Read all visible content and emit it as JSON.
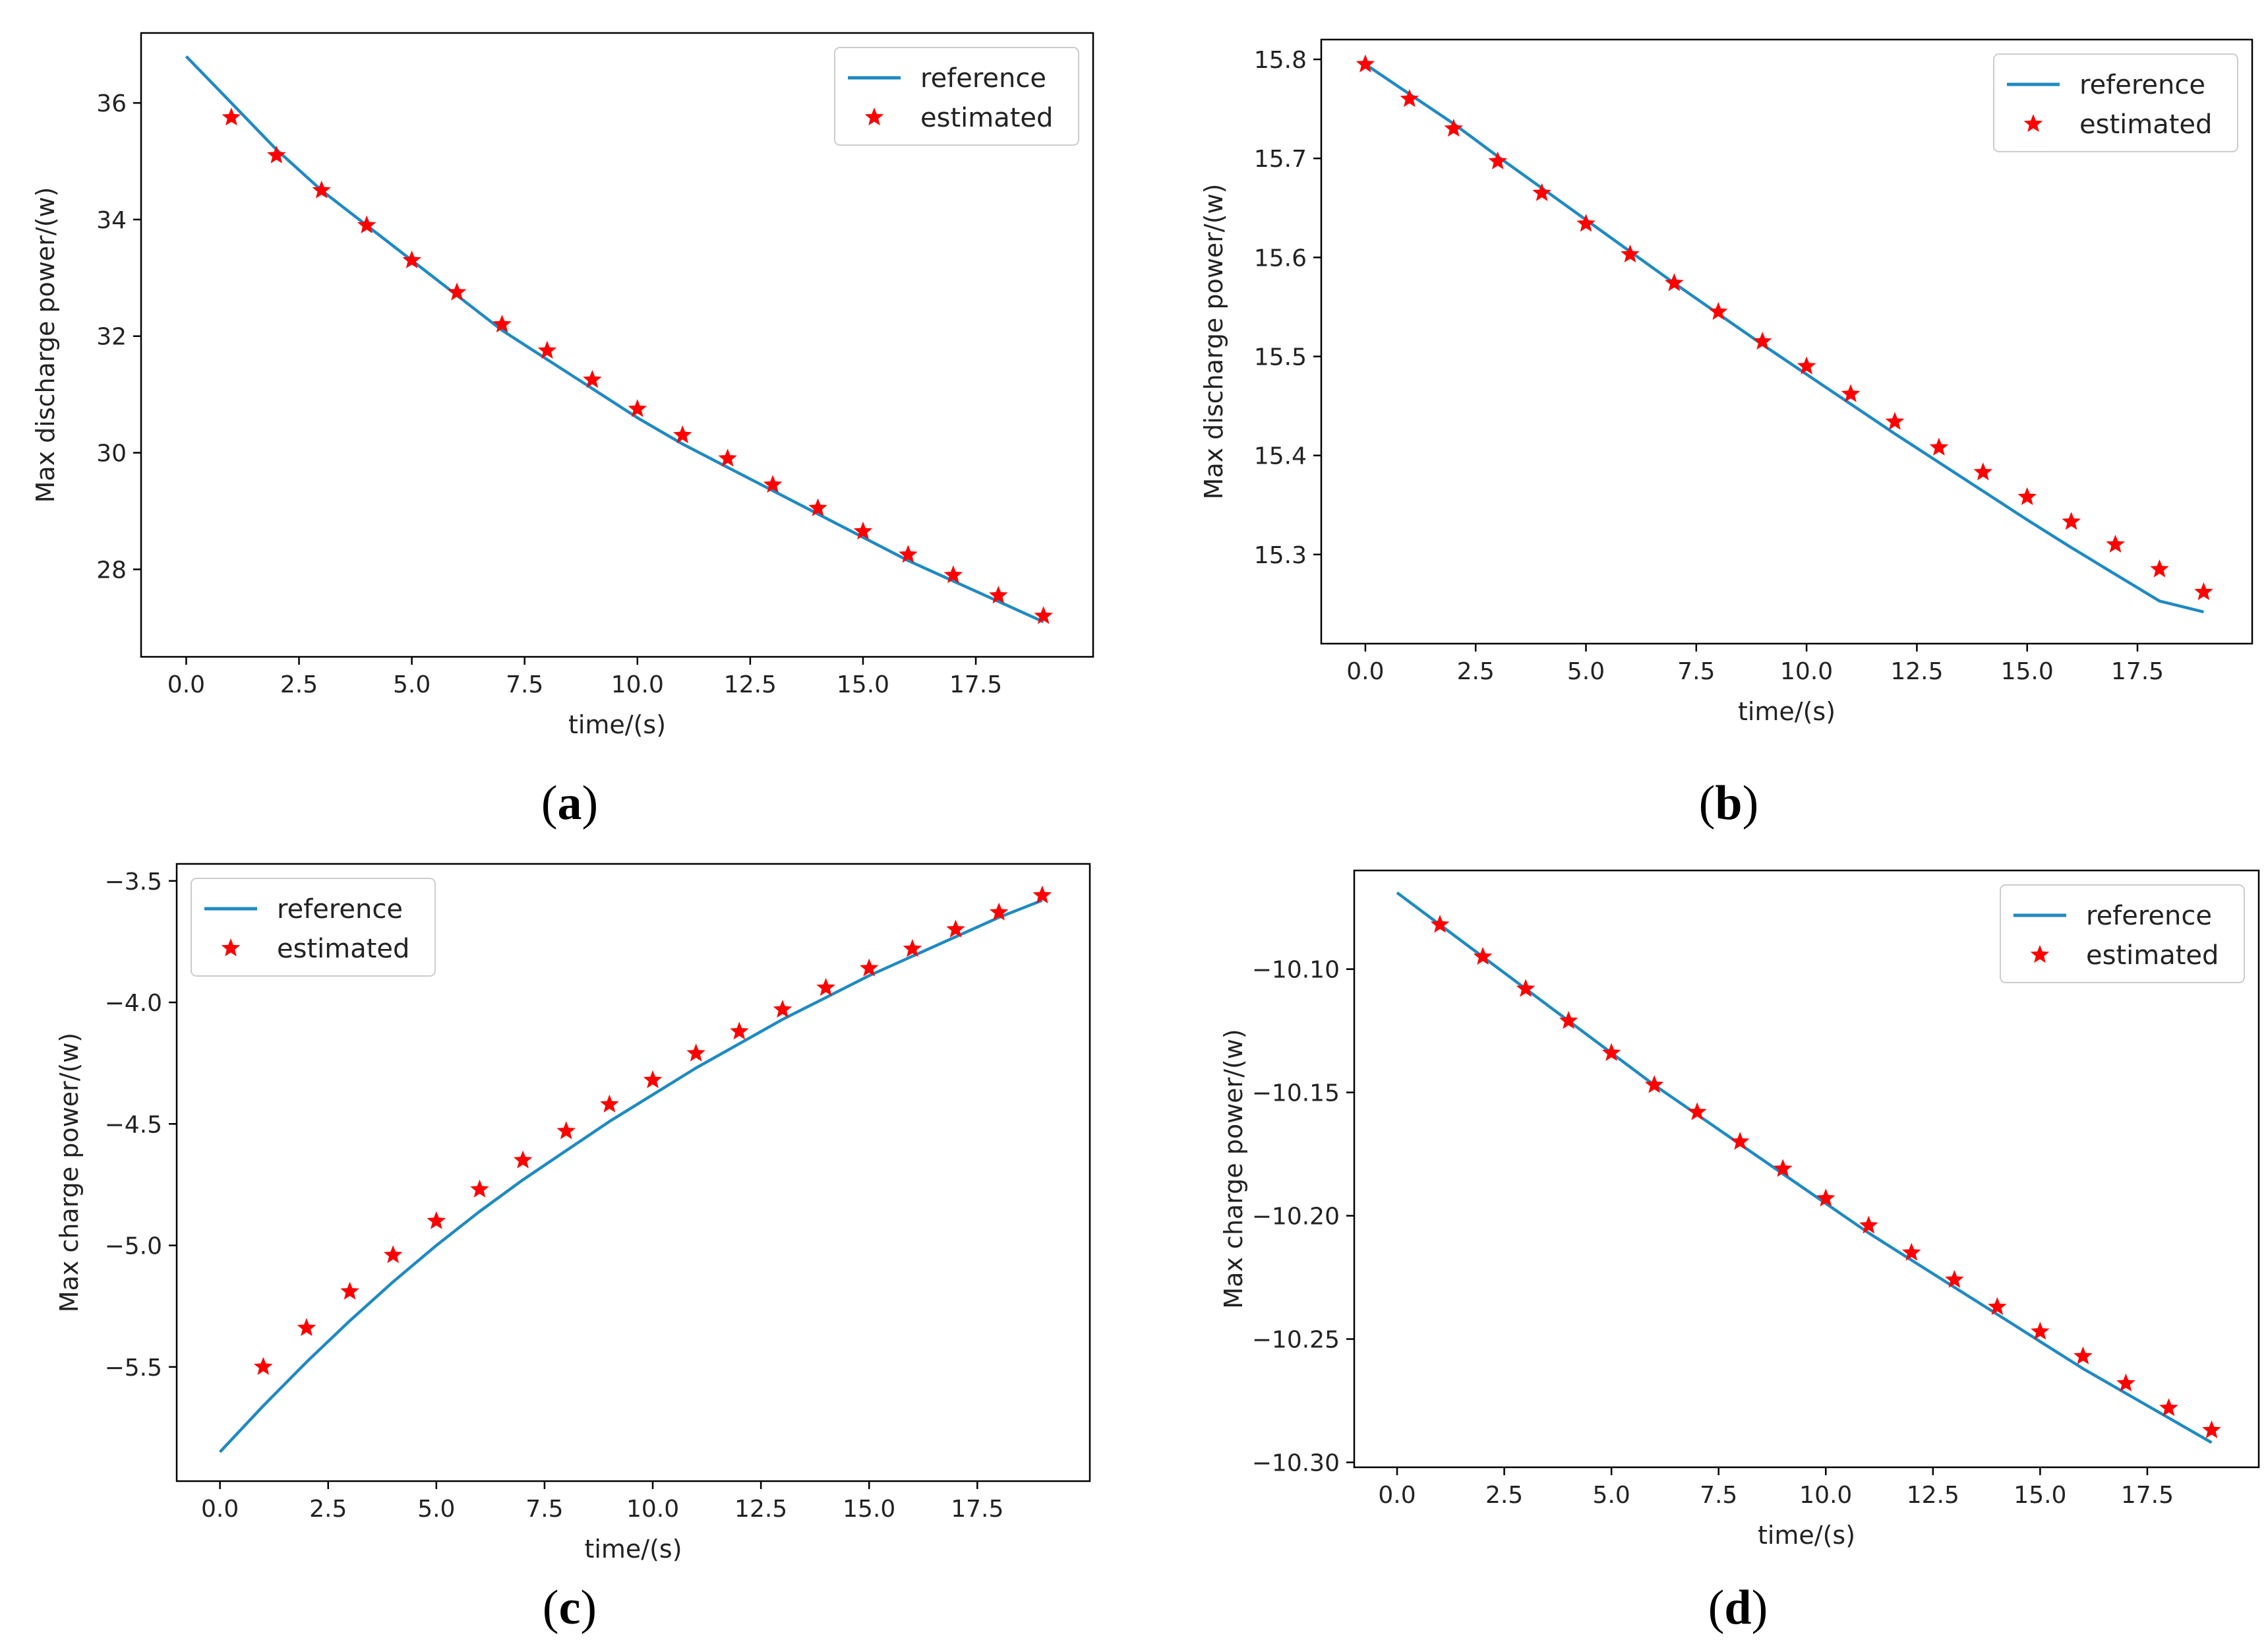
{
  "colors": {
    "reference": "#1f8ac2",
    "estimated": "#ff0000",
    "axis": "#000000"
  },
  "legend": {
    "reference_label": "reference",
    "estimated_label": "estimated"
  },
  "chart_data": [
    {
      "panel": "a",
      "caption": {
        "open": "(",
        "letter": "a",
        "close": ")"
      },
      "type": "line",
      "xlabel": "time/(s)",
      "ylabel": "Max discharge power/(w)",
      "xlim": [
        -1,
        20.1
      ],
      "ylim": [
        26.5,
        37.2
      ],
      "xticks": [
        0,
        2.5,
        5,
        7.5,
        10,
        12.5,
        15,
        17.5
      ],
      "xtick_labels": [
        "0.0",
        "2.5",
        "5.0",
        "7.5",
        "10.0",
        "12.5",
        "15.0",
        "17.5"
      ],
      "yticks": [
        28,
        30,
        32,
        34,
        36
      ],
      "ytick_labels": [
        "28",
        "30",
        "32",
        "34",
        "36"
      ],
      "legend_position": "top-right",
      "series": [
        {
          "name": "reference",
          "style": "line",
          "x": [
            0,
            1,
            2,
            3,
            4,
            5,
            6,
            7,
            8,
            9,
            10,
            11,
            12,
            13,
            14,
            15,
            16,
            17,
            18,
            19
          ],
          "y": [
            36.8,
            36.0,
            35.2,
            34.5,
            33.9,
            33.3,
            32.7,
            32.1,
            31.6,
            31.1,
            30.6,
            30.15,
            29.75,
            29.35,
            28.95,
            28.55,
            28.15,
            27.8,
            27.45,
            27.1
          ]
        },
        {
          "name": "estimated",
          "style": "marker",
          "x": [
            1,
            2,
            3,
            4,
            5,
            6,
            7,
            8,
            9,
            10,
            11,
            12,
            13,
            14,
            15,
            16,
            17,
            18,
            19
          ],
          "y": [
            35.75,
            35.1,
            34.5,
            33.9,
            33.3,
            32.75,
            32.2,
            31.75,
            31.25,
            30.75,
            30.3,
            29.9,
            29.45,
            29.05,
            28.65,
            28.25,
            27.9,
            27.55,
            27.2
          ]
        }
      ]
    },
    {
      "panel": "b",
      "caption": {
        "open": "(",
        "letter": "b",
        "close": ")"
      },
      "type": "line",
      "xlabel": "time/(s)",
      "ylabel": "Max discharge power/(w)",
      "xlim": [
        -1,
        20.1
      ],
      "ylim": [
        15.21,
        15.82
      ],
      "xticks": [
        0,
        2.5,
        5,
        7.5,
        10,
        12.5,
        15,
        17.5
      ],
      "xtick_labels": [
        "0.0",
        "2.5",
        "5.0",
        "7.5",
        "10.0",
        "12.5",
        "15.0",
        "17.5"
      ],
      "yticks": [
        15.3,
        15.4,
        15.5,
        15.6,
        15.7,
        15.8
      ],
      "ytick_labels": [
        "15.3",
        "15.4",
        "15.5",
        "15.6",
        "15.7",
        "15.8"
      ],
      "legend_position": "top-right",
      "series": [
        {
          "name": "reference",
          "style": "line",
          "x": [
            0,
            1,
            2,
            3,
            4,
            5,
            6,
            7,
            8,
            9,
            10,
            11,
            12,
            13,
            14,
            15,
            16,
            17,
            18,
            19
          ],
          "y": [
            15.795,
            15.765,
            15.735,
            15.702,
            15.67,
            15.638,
            15.606,
            15.574,
            15.543,
            15.512,
            15.482,
            15.452,
            15.422,
            15.393,
            15.364,
            15.335,
            15.307,
            15.28,
            15.253,
            15.242
          ]
        },
        {
          "name": "estimated",
          "style": "marker",
          "x": [
            0,
            1,
            2,
            3,
            4,
            5,
            6,
            7,
            8,
            9,
            10,
            11,
            12,
            13,
            14,
            15,
            16,
            17,
            18,
            19
          ],
          "y": [
            15.795,
            15.76,
            15.73,
            15.697,
            15.665,
            15.634,
            15.603,
            15.574,
            15.545,
            15.515,
            15.49,
            15.462,
            15.434,
            15.408,
            15.383,
            15.358,
            15.333,
            15.31,
            15.285,
            15.262
          ]
        }
      ]
    },
    {
      "panel": "c",
      "caption": {
        "open": "(",
        "letter": "c",
        "close": ")"
      },
      "type": "line",
      "xlabel": "time/(s)",
      "ylabel": "Max charge power/(w)",
      "xlim": [
        -1,
        20.1
      ],
      "ylim": [
        -5.97,
        -3.43
      ],
      "xticks": [
        0,
        2.5,
        5,
        7.5,
        10,
        12.5,
        15,
        17.5
      ],
      "xtick_labels": [
        "0.0",
        "2.5",
        "5.0",
        "7.5",
        "10.0",
        "12.5",
        "15.0",
        "17.5"
      ],
      "yticks": [
        -5.5,
        -5.0,
        -4.5,
        -4.0,
        -3.5
      ],
      "ytick_labels": [
        "−5.5",
        "−5.0",
        "−4.5",
        "−4.0",
        "−3.5"
      ],
      "legend_position": "top-left",
      "series": [
        {
          "name": "reference",
          "style": "line",
          "x": [
            0,
            1,
            2,
            3,
            4,
            5,
            6,
            7,
            8,
            9,
            10,
            11,
            12,
            13,
            14,
            15,
            16,
            17,
            18,
            19
          ],
          "y": [
            -5.85,
            -5.66,
            -5.48,
            -5.31,
            -5.15,
            -5.0,
            -4.86,
            -4.73,
            -4.61,
            -4.49,
            -4.38,
            -4.27,
            -4.17,
            -4.07,
            -3.98,
            -3.89,
            -3.81,
            -3.73,
            -3.65,
            -3.58
          ]
        },
        {
          "name": "estimated",
          "style": "marker",
          "x": [
            1,
            2,
            3,
            4,
            5,
            6,
            7,
            8,
            9,
            10,
            11,
            12,
            13,
            14,
            15,
            16,
            17,
            18,
            19
          ],
          "y": [
            -5.5,
            -5.34,
            -5.19,
            -5.04,
            -4.9,
            -4.77,
            -4.65,
            -4.53,
            -4.42,
            -4.32,
            -4.21,
            -4.12,
            -4.03,
            -3.94,
            -3.86,
            -3.78,
            -3.7,
            -3.63,
            -3.56
          ]
        }
      ]
    },
    {
      "panel": "d",
      "caption": {
        "open": "(",
        "letter": "d",
        "close": ")"
      },
      "type": "line",
      "xlabel": "time/(s)",
      "ylabel": "Max charge power/(w)",
      "xlim": [
        -1,
        20.1
      ],
      "ylim": [
        -10.302,
        -10.06
      ],
      "xticks": [
        0,
        2.5,
        5,
        7.5,
        10,
        12.5,
        15,
        17.5
      ],
      "xtick_labels": [
        "0.0",
        "2.5",
        "5.0",
        "7.5",
        "10.0",
        "12.5",
        "15.0",
        "17.5"
      ],
      "yticks": [
        -10.3,
        -10.25,
        -10.2,
        -10.15,
        -10.1
      ],
      "ytick_labels": [
        "−10.30",
        "−10.25",
        "−10.20",
        "−10.15",
        "−10.10"
      ],
      "legend_position": "top-right",
      "series": [
        {
          "name": "reference",
          "style": "line",
          "x": [
            0,
            1,
            2,
            3,
            4,
            5,
            6,
            7,
            8,
            9,
            10,
            11,
            12,
            13,
            14,
            15,
            16,
            17,
            18,
            19
          ],
          "y": [
            -10.069,
            -10.082,
            -10.095,
            -10.108,
            -10.121,
            -10.134,
            -10.147,
            -10.159,
            -10.171,
            -10.183,
            -10.195,
            -10.207,
            -10.218,
            -10.229,
            -10.24,
            -10.251,
            -10.262,
            -10.272,
            -10.282,
            -10.292
          ]
        },
        {
          "name": "estimated",
          "style": "marker",
          "x": [
            1,
            2,
            3,
            4,
            5,
            6,
            7,
            8,
            9,
            10,
            11,
            12,
            13,
            14,
            15,
            16,
            17,
            18,
            19
          ],
          "y": [
            -10.082,
            -10.095,
            -10.108,
            -10.121,
            -10.134,
            -10.147,
            -10.158,
            -10.17,
            -10.181,
            -10.193,
            -10.204,
            -10.215,
            -10.226,
            -10.237,
            -10.247,
            -10.257,
            -10.268,
            -10.278,
            -10.287
          ]
        }
      ]
    }
  ]
}
